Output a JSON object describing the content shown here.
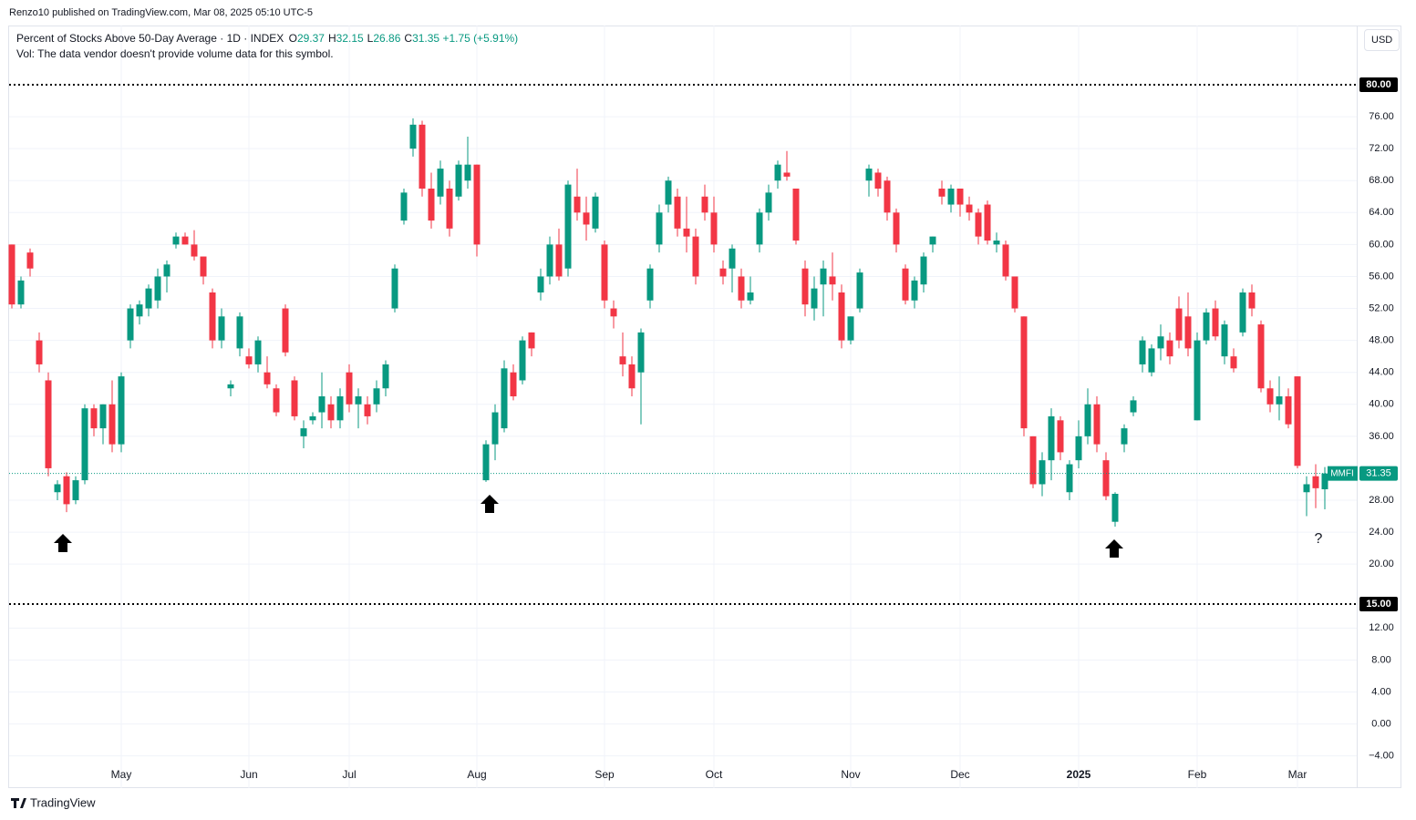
{
  "header": {
    "published": "Renzo10 published on TradingView.com, Mar 08, 2025 05:10 UTC-5",
    "footer": "TradingView"
  },
  "chart_data": {
    "type": "candlestick",
    "title": "Percent of Stocks Above 50-Day Average · 1D · INDEX",
    "ohlc_legend": {
      "letters": [
        "O",
        "H",
        "L",
        "C"
      ],
      "values": [
        29.37,
        32.15,
        26.86,
        31.35
      ],
      "change": {
        "value": 1.75,
        "label": "+1.75"
      },
      "change_pct": {
        "value": 5.91,
        "label": "(+5.91%)"
      }
    },
    "volume_note": "Vol: The data vendor doesn't provide volume data for this symbol.",
    "currency": "USD",
    "up_color": "#089981",
    "down_color": "#f23645",
    "annotation": "?",
    "ylim": [
      -8.03,
      87.41
    ],
    "yticks": [
      {
        "value": -4,
        "label": "−4.00"
      },
      {
        "value": 0,
        "label": "0.00"
      },
      {
        "value": 4,
        "label": "4.00"
      },
      {
        "value": 8,
        "label": "8.00"
      },
      {
        "value": 12,
        "label": "12.00"
      },
      {
        "value": 20,
        "label": "20.00"
      },
      {
        "value": 24,
        "label": "24.00"
      },
      {
        "value": 28,
        "label": "28.00"
      },
      {
        "value": 36,
        "label": "36.00"
      },
      {
        "value": 40,
        "label": "40.00"
      },
      {
        "value": 44,
        "label": "44.00"
      },
      {
        "value": 48,
        "label": "48.00"
      },
      {
        "value": 52,
        "label": "52.00"
      },
      {
        "value": 56,
        "label": "56.00"
      },
      {
        "value": 60,
        "label": "60.00"
      },
      {
        "value": 64,
        "label": "64.00"
      },
      {
        "value": 68,
        "label": "68.00"
      },
      {
        "value": 72,
        "label": "72.00"
      },
      {
        "value": 76,
        "label": "76.00"
      }
    ],
    "hlines": [
      {
        "value": 80,
        "label": "80.00"
      },
      {
        "value": 15,
        "label": "15.00"
      }
    ],
    "last_price": {
      "name": "MMFI",
      "value": 31.35
    },
    "grid": true,
    "categories": [
      null,
      null,
      null,
      null,
      null,
      null,
      null,
      null,
      null,
      null,
      null,
      null,
      "May",
      null,
      null,
      null,
      null,
      null,
      null,
      null,
      null,
      null,
      null,
      null,
      null,
      null,
      "Jun",
      null,
      null,
      null,
      null,
      null,
      null,
      null,
      null,
      null,
      null,
      "Jul",
      null,
      null,
      null,
      null,
      null,
      null,
      null,
      null,
      null,
      null,
      null,
      null,
      null,
      "Aug",
      null,
      null,
      null,
      null,
      null,
      null,
      null,
      null,
      null,
      null,
      null,
      null,
      null,
      "Sep",
      null,
      null,
      null,
      null,
      null,
      null,
      null,
      null,
      null,
      null,
      null,
      "Oct",
      null,
      null,
      null,
      null,
      null,
      null,
      null,
      null,
      null,
      null,
      null,
      null,
      null,
      null,
      "Nov",
      null,
      null,
      null,
      null,
      null,
      null,
      null,
      null,
      null,
      null,
      null,
      "Dec",
      null,
      null,
      null,
      null,
      null,
      null,
      null,
      null,
      null,
      null,
      null,
      null,
      "2025",
      null,
      null,
      null,
      null,
      null,
      null,
      null,
      null,
      null,
      null,
      null,
      null,
      "Feb",
      null,
      null,
      null,
      null,
      null,
      null,
      null,
      null,
      null,
      null,
      "Mar",
      null,
      null,
      null
    ],
    "ohlc": [
      [
        60,
        60,
        52,
        52.5
      ],
      [
        52.5,
        56,
        52,
        55.5
      ],
      [
        59,
        59.5,
        56,
        57
      ],
      [
        48,
        49,
        44,
        45
      ],
      [
        43,
        44,
        31,
        32
      ],
      [
        29,
        30.5,
        28,
        30
      ],
      [
        31,
        31.5,
        26.5,
        27.5
      ],
      [
        28,
        31,
        27.5,
        30.5
      ],
      [
        30.5,
        40,
        30,
        39.5
      ],
      [
        39.5,
        40,
        36,
        37
      ],
      [
        37,
        40,
        35,
        40
      ],
      [
        40,
        43,
        34,
        35
      ],
      [
        35,
        44,
        34,
        43.5
      ],
      [
        48,
        52.5,
        47,
        52
      ],
      [
        51,
        53,
        50,
        52.5
      ],
      [
        52,
        55,
        51,
        54.5
      ],
      [
        53,
        57,
        52,
        56
      ],
      [
        56,
        58,
        54,
        57.5
      ],
      [
        60,
        61.5,
        59.5,
        61
      ],
      [
        61,
        61.5,
        60,
        60
      ],
      [
        60,
        61.8,
        58,
        58.5
      ],
      [
        58.5,
        58.5,
        55,
        56
      ],
      [
        54,
        54.5,
        47,
        48
      ],
      [
        48,
        52,
        47,
        51
      ],
      [
        42,
        43,
        41,
        42.5
      ],
      [
        47,
        51.5,
        46,
        51
      ],
      [
        46,
        47,
        44.5,
        45
      ],
      [
        45,
        48.5,
        44,
        48
      ],
      [
        44,
        46,
        42,
        42.5
      ],
      [
        42,
        42.5,
        38.5,
        39
      ],
      [
        52,
        52.5,
        46,
        46.5
      ],
      [
        43,
        43.5,
        38,
        38.5
      ],
      [
        36,
        38,
        34.5,
        37
      ],
      [
        38,
        39,
        37.5,
        38.5
      ],
      [
        39,
        44,
        37,
        41
      ],
      [
        40,
        41,
        37,
        38
      ],
      [
        38,
        42,
        37,
        41
      ],
      [
        44,
        45,
        39,
        40
      ],
      [
        40,
        42,
        37,
        41
      ],
      [
        40,
        41,
        37.5,
        38.5
      ],
      [
        40,
        43,
        39,
        42
      ],
      [
        42,
        45.5,
        41,
        45
      ],
      [
        52,
        57.5,
        51.5,
        57
      ],
      [
        63,
        67,
        62.5,
        66.5
      ],
      [
        72,
        75.8,
        71,
        75
      ],
      [
        75,
        75.5,
        66,
        67
      ],
      [
        67,
        69,
        62,
        63
      ],
      [
        66,
        70.5,
        65,
        69.5
      ],
      [
        67,
        68,
        61,
        62
      ],
      [
        66,
        70.5,
        65.5,
        70
      ],
      [
        68,
        73.5,
        67,
        70
      ],
      [
        70,
        70,
        58.5,
        60
      ],
      [
        30.5,
        35.5,
        30.3,
        35
      ],
      [
        35,
        40,
        33,
        39
      ],
      [
        37,
        45.5,
        36.5,
        44.5
      ],
      [
        44,
        45,
        40.5,
        41
      ],
      [
        43,
        48.5,
        42.5,
        48
      ],
      [
        49,
        49,
        46,
        47
      ],
      [
        54,
        57,
        53,
        56
      ],
      [
        56,
        61,
        55,
        60
      ],
      [
        60,
        62,
        55.5,
        56
      ],
      [
        57,
        68,
        56,
        67.5
      ],
      [
        66,
        69.5,
        63,
        64
      ],
      [
        64,
        66,
        60.5,
        62.5
      ],
      [
        62,
        66.5,
        61.5,
        66
      ],
      [
        60,
        60.5,
        52,
        53
      ],
      [
        52,
        53,
        49.5,
        51
      ],
      [
        46,
        49,
        43.5,
        45
      ],
      [
        45,
        46,
        41,
        42
      ],
      [
        44,
        49.5,
        37.5,
        49
      ],
      [
        53,
        57.5,
        52,
        57
      ],
      [
        60,
        65,
        59,
        64
      ],
      [
        65,
        68.5,
        64,
        68
      ],
      [
        66,
        67,
        61,
        62
      ],
      [
        62,
        66,
        59,
        61
      ],
      [
        61,
        62,
        55,
        56
      ],
      [
        66,
        67.5,
        63,
        64
      ],
      [
        64,
        66,
        59,
        60
      ],
      [
        57,
        58,
        55,
        56
      ],
      [
        57,
        60,
        54,
        59.5
      ],
      [
        56,
        57,
        52,
        53
      ],
      [
        53,
        56,
        52.5,
        54
      ],
      [
        60,
        64.5,
        59,
        64
      ],
      [
        64,
        67.5,
        63,
        66.5
      ],
      [
        68,
        70.5,
        67,
        70
      ],
      [
        69,
        71.7,
        68,
        68.5
      ],
      [
        67,
        67,
        60,
        60.5
      ],
      [
        57,
        58,
        51,
        52.5
      ],
      [
        52,
        56,
        50.5,
        54.5
      ],
      [
        55,
        58,
        51,
        57
      ],
      [
        56,
        59,
        53,
        55
      ],
      [
        54,
        55,
        47,
        48
      ],
      [
        48,
        51,
        47.5,
        51
      ],
      [
        52,
        57,
        51.5,
        56.5
      ],
      [
        68,
        70,
        66,
        69.5
      ],
      [
        69,
        69.5,
        66,
        67
      ],
      [
        68,
        68.5,
        63,
        64
      ],
      [
        64,
        64.5,
        59,
        60
      ],
      [
        57,
        57.5,
        52.5,
        53
      ],
      [
        53,
        56,
        52,
        55.5
      ],
      [
        55,
        59,
        54,
        58.5
      ],
      [
        60,
        61,
        59,
        61
      ],
      [
        67,
        68,
        65,
        66
      ],
      [
        65,
        67.5,
        64,
        67
      ],
      [
        67,
        67,
        63.5,
        65
      ],
      [
        65,
        66,
        63,
        64
      ],
      [
        64,
        64.5,
        60,
        61
      ],
      [
        65,
        65.5,
        60,
        60.5
      ],
      [
        60,
        61.5,
        59,
        60.5
      ],
      [
        60,
        60.5,
        55.5,
        56
      ],
      [
        56,
        56,
        51.5,
        52
      ],
      [
        51,
        51,
        36,
        37
      ],
      [
        36,
        36,
        29.5,
        30
      ],
      [
        30,
        34,
        28.5,
        33
      ],
      [
        33,
        39.5,
        30.5,
        38.5
      ],
      [
        38,
        38.5,
        33,
        34
      ],
      [
        29,
        33,
        28,
        32.5
      ],
      [
        33,
        38,
        32,
        36
      ],
      [
        36,
        42,
        35,
        40
      ],
      [
        40,
        41,
        34,
        35
      ],
      [
        33,
        34,
        28,
        28.5
      ],
      [
        25.3,
        29,
        24.7,
        28.8
      ],
      [
        35,
        37.5,
        34,
        37
      ],
      [
        39,
        41,
        38.5,
        40.5
      ],
      [
        45,
        48.5,
        44,
        48
      ],
      [
        44,
        47.5,
        43.5,
        47
      ],
      [
        47,
        50,
        45.5,
        48.5
      ],
      [
        48,
        49,
        45,
        46
      ],
      [
        52,
        53.5,
        47,
        48
      ],
      [
        51,
        54,
        46,
        47
      ],
      [
        38,
        49,
        38,
        48
      ],
      [
        48,
        52,
        47.5,
        51.5
      ],
      [
        52,
        53,
        48,
        48.5
      ],
      [
        46,
        50.5,
        45,
        50
      ],
      [
        46,
        47,
        44,
        44.5
      ],
      [
        49,
        54.5,
        48.5,
        54
      ],
      [
        54,
        55,
        51,
        52
      ],
      [
        50,
        50.5,
        41.5,
        42
      ],
      [
        42,
        43,
        39,
        40
      ],
      [
        40,
        43.5,
        38,
        41
      ],
      [
        41,
        42,
        37,
        37.5
      ],
      [
        43.5,
        43.5,
        32,
        32.3
      ],
      [
        29,
        31,
        26,
        30
      ],
      [
        31,
        32.5,
        27,
        29.5
      ],
      [
        29.37,
        32.15,
        26.86,
        31.35
      ]
    ]
  }
}
